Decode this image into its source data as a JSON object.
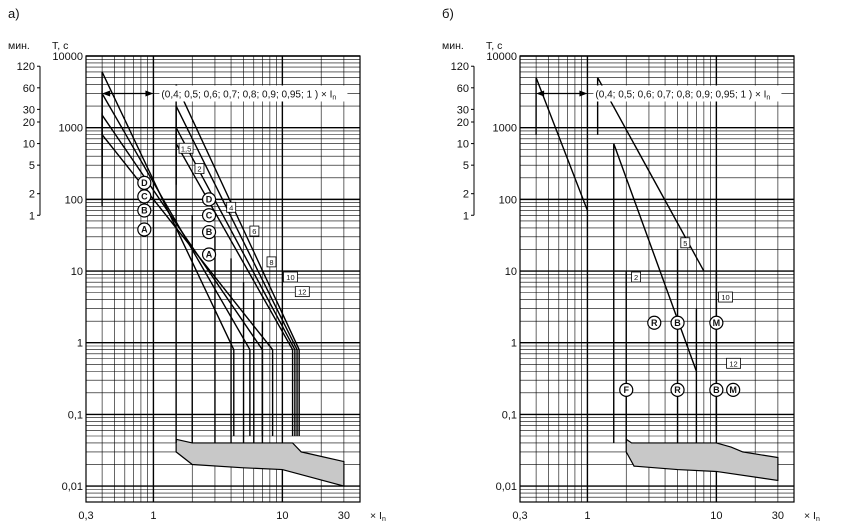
{
  "chart_data": [
    {
      "type": "line",
      "panel_label": "а)",
      "ylabel_min": "мин.",
      "ylabel_sec": "Т, с",
      "xlabel": "× I",
      "xlabel_sub": "n",
      "xscale": "log",
      "yscale": "log",
      "xlim": [
        0.3,
        40
      ],
      "ylim": [
        0.006,
        10000
      ],
      "x_ticks": [
        {
          "v": 0.3,
          "t": "0,3"
        },
        {
          "v": 1,
          "t": "1"
        },
        {
          "v": 10,
          "t": "10"
        },
        {
          "v": 30,
          "t": "30"
        }
      ],
      "y_ticks": [
        {
          "v": 10000,
          "t": "10000"
        },
        {
          "v": 1000,
          "t": "1000"
        },
        {
          "v": 100,
          "t": "100"
        },
        {
          "v": 10,
          "t": "10"
        },
        {
          "v": 1,
          "t": "1"
        },
        {
          "v": 0.1,
          "t": "0,1"
        },
        {
          "v": 0.01,
          "t": "0,01"
        }
      ],
      "min_ticks": [
        {
          "v": 120,
          "t": "120"
        },
        {
          "v": 60,
          "t": "60"
        },
        {
          "v": 30,
          "t": "30"
        },
        {
          "v": 20,
          "t": "20"
        },
        {
          "v": 10,
          "t": "10"
        },
        {
          "v": 5,
          "t": "5"
        },
        {
          "v": 2,
          "t": "2"
        },
        {
          "v": 1,
          "t": "1"
        }
      ],
      "range_note": "(0,4; 0,5; 0,6; 0,7; 0,8; 0,9; 0,95; 1 ) × I",
      "range_arrow": [
        0.4,
        1
      ],
      "range_note_y": 3000,
      "overload_lines": [
        [
          [
            0.4,
            800
          ],
          [
            0.4,
            6000
          ],
          [
            4.2,
            0.8
          ],
          [
            4.2,
            0.05
          ]
        ],
        [
          [
            0.4,
            400
          ],
          [
            0.4,
            3000
          ],
          [
            5.6,
            0.8
          ],
          [
            5.6,
            0.05
          ]
        ],
        [
          [
            0.4,
            200
          ],
          [
            0.4,
            1500
          ],
          [
            7,
            0.8
          ],
          [
            7,
            0.05
          ]
        ],
        [
          [
            0.4,
            80
          ],
          [
            0.4,
            800
          ],
          [
            8.4,
            0.8
          ],
          [
            8.4,
            0.05
          ]
        ],
        [
          [
            1.5,
            80
          ],
          [
            1.5,
            600
          ],
          [
            12,
            0.8
          ],
          [
            12,
            0.05
          ]
        ],
        [
          [
            1.5,
            160
          ],
          [
            1.5,
            1000
          ],
          [
            12.5,
            0.8
          ],
          [
            12.5,
            0.05
          ]
        ],
        [
          [
            1.5,
            350
          ],
          [
            1.5,
            2000
          ],
          [
            13,
            0.8
          ],
          [
            13,
            0.05
          ]
        ],
        [
          [
            1.5,
            700
          ],
          [
            1.5,
            4000
          ],
          [
            13.5,
            0.8
          ],
          [
            13.5,
            0.05
          ]
        ]
      ],
      "short_circuit_verticals": [
        [
          1.5,
          0.04,
          100
        ],
        [
          2,
          0.04,
          60
        ],
        [
          3,
          0.04,
          30
        ],
        [
          4,
          0.04,
          15
        ],
        [
          5,
          0.04,
          7
        ],
        [
          6,
          0.04,
          4
        ],
        [
          7,
          0.04,
          2
        ]
      ],
      "band_upper": [
        [
          1.5,
          0.045
        ],
        [
          2,
          0.04
        ],
        [
          10,
          0.04
        ],
        [
          12,
          0.04
        ],
        [
          14,
          0.03
        ],
        [
          30,
          0.022
        ]
      ],
      "band_lower": [
        [
          1.5,
          0.03
        ],
        [
          2,
          0.02
        ],
        [
          5,
          0.018
        ],
        [
          10,
          0.017
        ],
        [
          30,
          0.01
        ]
      ],
      "markers": [
        {
          "text": "D",
          "x": 0.85,
          "y": 170
        },
        {
          "text": "C",
          "x": 0.85,
          "y": 110
        },
        {
          "text": "B",
          "x": 0.85,
          "y": 70
        },
        {
          "text": "A",
          "x": 0.85,
          "y": 38
        },
        {
          "text": "D",
          "x": 2.7,
          "y": 100
        },
        {
          "text": "C",
          "x": 2.7,
          "y": 60
        },
        {
          "text": "B",
          "x": 2.7,
          "y": 35
        },
        {
          "text": "A",
          "x": 2.7,
          "y": 17
        }
      ],
      "boxes": [
        {
          "text": "1,5",
          "x": 1.58,
          "y": 500
        },
        {
          "text": "2",
          "x": 2.1,
          "y": 260
        },
        {
          "text": "4",
          "x": 3.7,
          "y": 75
        },
        {
          "text": "6",
          "x": 5.6,
          "y": 35
        },
        {
          "text": "8",
          "x": 7.6,
          "y": 13
        },
        {
          "text": "10",
          "x": 10.2,
          "y": 8
        },
        {
          "text": "12",
          "x": 12.6,
          "y": 5
        }
      ]
    },
    {
      "type": "line",
      "panel_label": "б)",
      "ylabel_min": "мин.",
      "ylabel_sec": "Т, с",
      "xlabel": "× I",
      "xlabel_sub": "n",
      "xscale": "log",
      "yscale": "log",
      "xlim": [
        0.3,
        40
      ],
      "ylim": [
        0.006,
        10000
      ],
      "x_ticks": [
        {
          "v": 0.3,
          "t": "0,3"
        },
        {
          "v": 1,
          "t": "1"
        },
        {
          "v": 10,
          "t": "10"
        },
        {
          "v": 30,
          "t": "30"
        }
      ],
      "y_ticks": [
        {
          "v": 10000,
          "t": "10000"
        },
        {
          "v": 1000,
          "t": "1000"
        },
        {
          "v": 100,
          "t": "100"
        },
        {
          "v": 10,
          "t": "10"
        },
        {
          "v": 1,
          "t": "1"
        },
        {
          "v": 0.1,
          "t": "0,1"
        },
        {
          "v": 0.01,
          "t": "0,01"
        }
      ],
      "min_ticks": [
        {
          "v": 120,
          "t": "120"
        },
        {
          "v": 60,
          "t": "60"
        },
        {
          "v": 30,
          "t": "30"
        },
        {
          "v": 20,
          "t": "20"
        },
        {
          "v": 10,
          "t": "10"
        },
        {
          "v": 5,
          "t": "5"
        },
        {
          "v": 2,
          "t": "2"
        },
        {
          "v": 1,
          "t": "1"
        }
      ],
      "range_note": "(0,4; 0,5; 0,6; 0,7; 0,8; 0,9; 0,95; 1 ) × I",
      "range_arrow": [
        0.4,
        1
      ],
      "range_note_y": 3000,
      "overload_lines": [
        [
          [
            0.4,
            800
          ],
          [
            0.4,
            5000
          ],
          [
            1,
            70
          ]
        ],
        [
          [
            1.2,
            800
          ],
          [
            1.2,
            5000
          ],
          [
            8,
            10
          ]
        ],
        [
          [
            1.6,
            90
          ],
          [
            1.6,
            600
          ],
          [
            7,
            0.4
          ]
        ],
        [
          [
            10,
            10
          ],
          [
            10,
            0.05
          ]
        ]
      ],
      "short_circuit_verticals": [
        [
          1.6,
          0.04,
          90
        ],
        [
          2,
          0.04,
          10
        ],
        [
          5,
          0.04,
          20
        ],
        [
          7,
          0.04,
          3
        ]
      ],
      "band_upper": [
        [
          2,
          0.045
        ],
        [
          2.2,
          0.04
        ],
        [
          10,
          0.04
        ],
        [
          13,
          0.035
        ],
        [
          16,
          0.03
        ],
        [
          30,
          0.025
        ]
      ],
      "band_lower": [
        [
          2,
          0.03
        ],
        [
          2.3,
          0.019
        ],
        [
          5,
          0.017
        ],
        [
          10,
          0.016
        ],
        [
          30,
          0.012
        ]
      ],
      "markers": [
        {
          "text": "R",
          "x": 3.3,
          "y": 1.9
        },
        {
          "text": "B",
          "x": 5,
          "y": 1.9
        },
        {
          "text": "M",
          "x": 10,
          "y": 1.9
        },
        {
          "text": "F",
          "x": 2,
          "y": 0.22
        },
        {
          "text": "R",
          "x": 5,
          "y": 0.22
        },
        {
          "text": "B",
          "x": 10,
          "y": 0.22
        },
        {
          "text": "M",
          "x": 13.5,
          "y": 0.22
        }
      ],
      "boxes": [
        {
          "text": "2",
          "x": 2.2,
          "y": 8
        },
        {
          "text": "5",
          "x": 5.3,
          "y": 24
        },
        {
          "text": "10",
          "x": 10.4,
          "y": 4.2
        },
        {
          "text": "12",
          "x": 12,
          "y": 0.5
        }
      ]
    }
  ]
}
